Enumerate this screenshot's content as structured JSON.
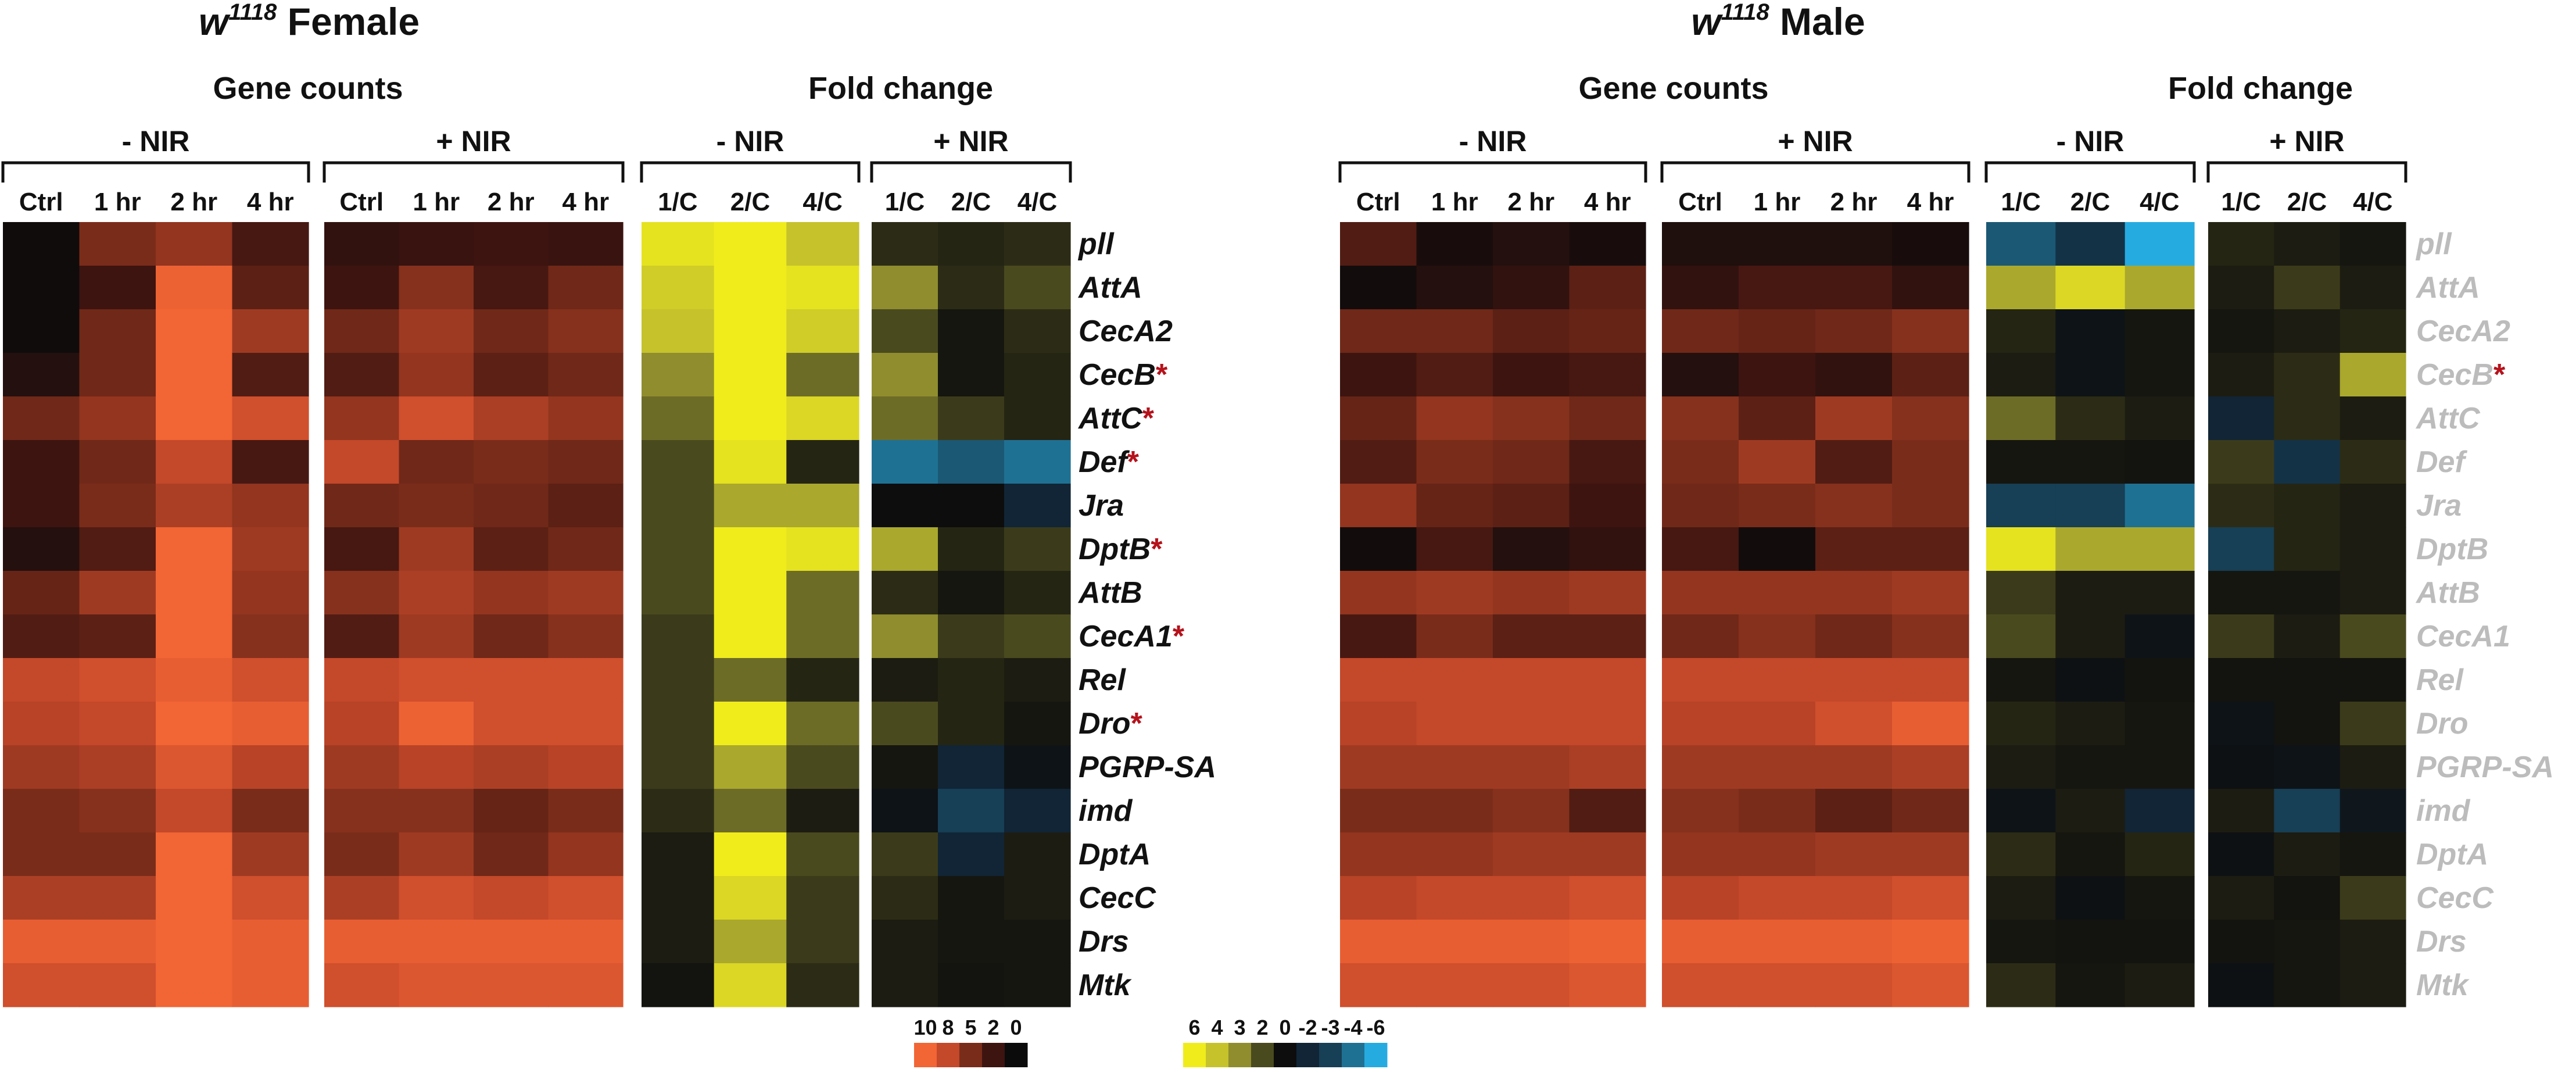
{
  "panels": [
    {
      "title_italic": "w",
      "title_sup": "1118",
      "title_rest": " Female",
      "gene_label_color": "#111111",
      "counts": {
        "header": "Gene counts",
        "groups": [
          {
            "label": "- NIR",
            "columns": [
              "Ctrl",
              "1 hr",
              "2 hr",
              "4 hr"
            ]
          },
          {
            "label": "+ NIR",
            "columns": [
              "Ctrl",
              "1 hr",
              "2 hr",
              "4 hr"
            ]
          }
        ]
      },
      "fold": {
        "header": "Fold change",
        "groups": [
          {
            "label": "- NIR",
            "columns": [
              "1/C",
              "2/C",
              "4/C"
            ]
          },
          {
            "label": "+ NIR",
            "columns": [
              "1/C",
              "2/C",
              "4/C"
            ]
          }
        ]
      },
      "genes": [
        {
          "name": "pll",
          "starred": false
        },
        {
          "name": "AttA",
          "starred": false
        },
        {
          "name": "CecA2",
          "starred": false
        },
        {
          "name": "CecB",
          "starred": true
        },
        {
          "name": "AttC",
          "starred": true
        },
        {
          "name": "Def",
          "starred": true
        },
        {
          "name": "Jra",
          "starred": false
        },
        {
          "name": "DptB",
          "starred": true
        },
        {
          "name": "AttB",
          "starred": false
        },
        {
          "name": "CecA1",
          "starred": true
        },
        {
          "name": "Rel",
          "starred": false
        },
        {
          "name": "Dro",
          "starred": true
        },
        {
          "name": "PGRP-SA",
          "starred": false
        },
        {
          "name": "imd",
          "starred": false
        },
        {
          "name": "DptA",
          "starred": false
        },
        {
          "name": "CecC",
          "starred": false
        },
        {
          "name": "Drs",
          "starred": false
        },
        {
          "name": "Mtk",
          "starred": false
        }
      ]
    },
    {
      "title_italic": "w",
      "title_sup": "1118",
      "title_rest": " Male",
      "gene_label_color": "#bcbcbc",
      "counts": {
        "header": "Gene counts",
        "groups": [
          {
            "label": "- NIR",
            "columns": [
              "Ctrl",
              "1 hr",
              "2 hr",
              "4 hr"
            ]
          },
          {
            "label": "+ NIR",
            "columns": [
              "Ctrl",
              "1 hr",
              "2 hr",
              "4 hr"
            ]
          }
        ]
      },
      "fold": {
        "header": "Fold change",
        "groups": [
          {
            "label": "- NIR",
            "columns": [
              "1/C",
              "2/C",
              "4/C"
            ]
          },
          {
            "label": "+ NIR",
            "columns": [
              "1/C",
              "2/C",
              "4/C"
            ]
          }
        ]
      },
      "genes": [
        {
          "name": "pll",
          "starred": false
        },
        {
          "name": "AttA",
          "starred": false
        },
        {
          "name": "CecA2",
          "starred": false
        },
        {
          "name": "CecB",
          "starred": true
        },
        {
          "name": "AttC",
          "starred": false
        },
        {
          "name": "Def",
          "starred": false
        },
        {
          "name": "Jra",
          "starred": false
        },
        {
          "name": "DptB",
          "starred": false
        },
        {
          "name": "AttB",
          "starred": false
        },
        {
          "name": "CecA1",
          "starred": false
        },
        {
          "name": "Rel",
          "starred": false
        },
        {
          "name": "Dro",
          "starred": false
        },
        {
          "name": "PGRP-SA",
          "starred": false
        },
        {
          "name": "imd",
          "starred": false
        },
        {
          "name": "DptA",
          "starred": false
        },
        {
          "name": "CecC",
          "starred": false
        },
        {
          "name": "Drs",
          "starred": false
        },
        {
          "name": "Mtk",
          "starred": false
        }
      ]
    }
  ],
  "legend": {
    "counts": {
      "ticks": [
        "10",
        "8",
        "5",
        "2",
        "0"
      ],
      "colors": [
        "#f26534",
        "#c4482a",
        "#7a2c1a",
        "#3d1410",
        "#0b0b0b"
      ]
    },
    "fold": {
      "ticks": [
        "6",
        "4",
        "3",
        "2",
        "0",
        "-2",
        "-3",
        "-4",
        "-6"
      ],
      "colors": [
        "#f0ec1c",
        "#c5c22c",
        "#8f8d2e",
        "#4a4a1f",
        "#0d0d0d",
        "#112536",
        "#173f55",
        "#1f7193",
        "#26abe0"
      ]
    }
  },
  "colors": {
    "star": "#b5121b",
    "text": "#111111",
    "bracket": "#111111"
  },
  "chart_data": [
    {
      "type": "heatmap",
      "title": "w1118 Female",
      "section": "Gene counts",
      "scale": [
        0,
        10
      ],
      "rows": [
        "pll",
        "AttA",
        "CecA2",
        "CecB",
        "AttC",
        "Def",
        "Jra",
        "DptB",
        "AttB",
        "CecA1",
        "Rel",
        "Dro",
        "PGRP-SA",
        "imd",
        "DptA",
        "CecC",
        "Drs",
        "Mtk"
      ],
      "columns": [
        "- NIR Ctrl",
        "- NIR 1 hr",
        "- NIR 2 hr",
        "- NIR 4 hr",
        "+ NIR Ctrl",
        "+ NIR 1 hr",
        "+ NIR 2 hr",
        "+ NIR 4 hr"
      ],
      "values": [
        [
          0.2,
          5.0,
          6.0,
          2.5,
          1.5,
          1.8,
          2.0,
          1.8
        ],
        [
          0.2,
          2.0,
          9.8,
          3.5,
          2.0,
          5.5,
          2.5,
          4.5
        ],
        [
          0.2,
          4.5,
          10,
          6.5,
          4.5,
          6.5,
          4.5,
          5.5
        ],
        [
          1.0,
          4.5,
          10,
          3.0,
          3.0,
          6.0,
          3.5,
          4.5
        ],
        [
          4.5,
          6.0,
          10,
          8.5,
          6.0,
          8.5,
          7.0,
          6.0
        ],
        [
          2.0,
          4.5,
          8.0,
          2.5,
          8.0,
          4.5,
          5.0,
          4.5
        ],
        [
          2.0,
          5.0,
          7.0,
          6.0,
          4.5,
          5.0,
          4.5,
          3.5
        ],
        [
          1.0,
          3.0,
          10,
          6.5,
          2.5,
          6.5,
          3.5,
          4.5
        ],
        [
          4.0,
          6.5,
          10,
          6.0,
          5.5,
          7.0,
          6.0,
          6.5
        ],
        [
          3.0,
          3.5,
          10,
          5.5,
          3.0,
          6.5,
          4.5,
          5.5
        ],
        [
          8.0,
          8.5,
          9.5,
          8.5,
          8.0,
          8.5,
          8.5,
          8.5
        ],
        [
          7.5,
          8.0,
          10,
          9.5,
          7.5,
          9.8,
          8.5,
          8.5
        ],
        [
          6.5,
          7.0,
          9.0,
          7.5,
          6.5,
          7.5,
          7.0,
          7.5
        ],
        [
          5.0,
          5.5,
          8.0,
          5.0,
          5.5,
          5.5,
          4.0,
          5.0
        ],
        [
          5.0,
          5.0,
          10,
          6.5,
          5.0,
          6.5,
          4.5,
          6.0
        ],
        [
          7.0,
          7.0,
          10,
          8.5,
          7.0,
          8.5,
          8.0,
          8.5
        ],
        [
          9.5,
          9.5,
          10,
          9.5,
          9.5,
          9.5,
          9.5,
          9.5
        ],
        [
          8.5,
          8.5,
          10,
          9.5,
          8.5,
          9.0,
          9.0,
          9.0
        ]
      ]
    },
    {
      "type": "heatmap",
      "title": "w1118 Female",
      "section": "Fold change",
      "scale": [
        -6,
        6
      ],
      "rows": [
        "pll",
        "AttA",
        "CecA2",
        "CecB",
        "AttC",
        "Def",
        "Jra",
        "DptB",
        "AttB",
        "CecA1",
        "Rel",
        "Dro",
        "PGRP-SA",
        "imd",
        "DptA",
        "CecC",
        "Drs",
        "Mtk"
      ],
      "columns": [
        "- NIR 1/C",
        "- NIR 2/C",
        "- NIR 4/C",
        "+ NIR 1/C",
        "+ NIR 2/C",
        "+ NIR 4/C"
      ],
      "values": [
        [
          5.5,
          6,
          4.0,
          1.0,
          0.8,
          1.0
        ],
        [
          4.5,
          6,
          5.5,
          3.0,
          1.0,
          2.0
        ],
        [
          4.0,
          6,
          4.5,
          2.0,
          0.3,
          1.0
        ],
        [
          3.0,
          6,
          2.5,
          3.0,
          0.3,
          0.8
        ],
        [
          2.5,
          6,
          5.0,
          2.5,
          1.5,
          0.8
        ],
        [
          2.0,
          5.5,
          0.8,
          -4.0,
          -3.5,
          -4.0
        ],
        [
          2.0,
          3.5,
          3.5,
          0,
          0,
          -2.0
        ],
        [
          2.0,
          6,
          5.5,
          3.5,
          0.8,
          1.5
        ],
        [
          2.0,
          6,
          2.5,
          1.0,
          0.3,
          0.8
        ],
        [
          1.5,
          6,
          2.5,
          3.0,
          1.5,
          2.0
        ],
        [
          1.5,
          2.5,
          0.8,
          0.5,
          0.8,
          0.5
        ],
        [
          1.5,
          6,
          2.5,
          2.0,
          0.8,
          0.3
        ],
        [
          1.5,
          3.5,
          2.0,
          0.3,
          -2.0,
          -0.5
        ],
        [
          1.0,
          2.5,
          0.5,
          -0.5,
          -3.0,
          -2.0
        ],
        [
          0.5,
          6,
          2.0,
          1.5,
          -2.0,
          0.5
        ],
        [
          0.5,
          5.0,
          1.5,
          1.0,
          0.3,
          0.5
        ],
        [
          0.5,
          3.5,
          1.5,
          0.5,
          0.3,
          0.3
        ],
        [
          0.2,
          5.0,
          1.0,
          0.5,
          0.2,
          0.3
        ]
      ]
    },
    {
      "type": "heatmap",
      "title": "w1118 Male",
      "section": "Gene counts",
      "scale": [
        0,
        10
      ],
      "rows": [
        "pll",
        "AttA",
        "CecA2",
        "CecB",
        "AttC",
        "Def",
        "Jra",
        "DptB",
        "AttB",
        "CecA1",
        "Rel",
        "Dro",
        "PGRP-SA",
        "imd",
        "DptA",
        "CecC",
        "Drs",
        "Mtk"
      ],
      "columns": [
        "- NIR Ctrl",
        "- NIR 1 hr",
        "- NIR 2 hr",
        "- NIR 4 hr",
        "+ NIR Ctrl",
        "+ NIR 1 hr",
        "+ NIR 2 hr",
        "+ NIR 4 hr"
      ],
      "values": [
        [
          3.0,
          0.5,
          1.0,
          0.5,
          0.8,
          0.8,
          0.8,
          0.5
        ],
        [
          0.3,
          1.0,
          1.5,
          3.5,
          1.5,
          2.5,
          2.5,
          1.5
        ],
        [
          4.5,
          4.5,
          3.5,
          4.0,
          4.5,
          4.0,
          4.5,
          5.5
        ],
        [
          2.0,
          3.0,
          2.0,
          2.5,
          1.0,
          2.0,
          1.5,
          3.5
        ],
        [
          4.0,
          6.0,
          5.5,
          4.5,
          5.5,
          3.5,
          6.5,
          5.5
        ],
        [
          3.0,
          5.0,
          4.5,
          2.5,
          5.0,
          6.5,
          3.0,
          5.0
        ],
        [
          6.0,
          4.0,
          3.5,
          2.0,
          4.5,
          5.0,
          5.5,
          5.0
        ],
        [
          0.3,
          2.5,
          1.0,
          1.5,
          2.5,
          0.3,
          3.5,
          3.5
        ],
        [
          6.0,
          6.5,
          6.0,
          6.5,
          6.0,
          6.0,
          6.0,
          6.5
        ],
        [
          2.5,
          5.0,
          3.5,
          3.5,
          4.5,
          5.5,
          4.5,
          5.5
        ],
        [
          8.0,
          8.0,
          8.0,
          8.0,
          8.0,
          8.0,
          8.0,
          8.0
        ],
        [
          7.5,
          8.0,
          8.0,
          8.0,
          7.5,
          7.5,
          8.5,
          9.5
        ],
        [
          6.5,
          6.5,
          6.5,
          7.0,
          6.5,
          6.5,
          6.5,
          7.0
        ],
        [
          5.0,
          5.0,
          5.5,
          3.0,
          5.5,
          5.0,
          3.5,
          4.5
        ],
        [
          6.0,
          6.0,
          6.5,
          6.5,
          6.0,
          6.0,
          6.5,
          6.5
        ],
        [
          7.5,
          8.0,
          8.0,
          8.5,
          7.5,
          8.0,
          8.0,
          8.5
        ],
        [
          9.5,
          9.5,
          9.5,
          9.8,
          9.5,
          9.5,
          9.5,
          9.8
        ],
        [
          8.5,
          8.5,
          8.5,
          9.0,
          8.5,
          8.5,
          8.5,
          9.0
        ]
      ]
    },
    {
      "type": "heatmap",
      "title": "w1118 Male",
      "section": "Fold change",
      "scale": [
        -6,
        6
      ],
      "rows": [
        "pll",
        "AttA",
        "CecA2",
        "CecB",
        "AttC",
        "Def",
        "Jra",
        "DptB",
        "AttB",
        "CecA1",
        "Rel",
        "Dro",
        "PGRP-SA",
        "imd",
        "DptA",
        "CecC",
        "Drs",
        "Mtk"
      ],
      "columns": [
        "- NIR 1/C",
        "- NIR 2/C",
        "- NIR 4/C",
        "+ NIR 1/C",
        "+ NIR 2/C",
        "+ NIR 4/C"
      ],
      "values": [
        [
          -3.5,
          -2.5,
          -6.0,
          0.8,
          0.5,
          0.3
        ],
        [
          3.5,
          5.0,
          3.5,
          0.5,
          1.5,
          0.5
        ],
        [
          0.8,
          -0.5,
          0.3,
          0.3,
          0.5,
          0.8
        ],
        [
          0.5,
          -0.5,
          0.3,
          0.5,
          1.0,
          3.5
        ],
        [
          2.5,
          1.0,
          0.5,
          -2.0,
          1.0,
          0.5
        ],
        [
          0.3,
          0.3,
          0.2,
          1.5,
          -2.5,
          1.0
        ],
        [
          -3.0,
          -3.0,
          -4.0,
          1.0,
          0.8,
          0.5
        ],
        [
          5.5,
          3.5,
          3.5,
          -3.0,
          0.8,
          0.5
        ],
        [
          1.5,
          0.5,
          0.5,
          0.3,
          0.3,
          0.5
        ],
        [
          2.0,
          0.5,
          -0.5,
          1.5,
          0.5,
          2.0
        ],
        [
          0.3,
          -0.3,
          0.2,
          0.2,
          0.2,
          0.2
        ],
        [
          0.8,
          0.5,
          0.3,
          -0.5,
          0.2,
          1.5
        ],
        [
          0.5,
          0.3,
          0.3,
          -0.3,
          -0.5,
          0.5
        ],
        [
          -0.5,
          0.5,
          -2.0,
          0.5,
          -3.0,
          -0.8
        ],
        [
          1.0,
          0.3,
          0.8,
          -0.3,
          0.5,
          0.3
        ],
        [
          0.5,
          -0.3,
          0.3,
          0.5,
          0.2,
          1.5
        ],
        [
          0.3,
          0.2,
          0.2,
          0.2,
          0.3,
          0.5
        ],
        [
          1.0,
          0.3,
          0.5,
          -0.3,
          0.3,
          0.5
        ]
      ]
    }
  ]
}
